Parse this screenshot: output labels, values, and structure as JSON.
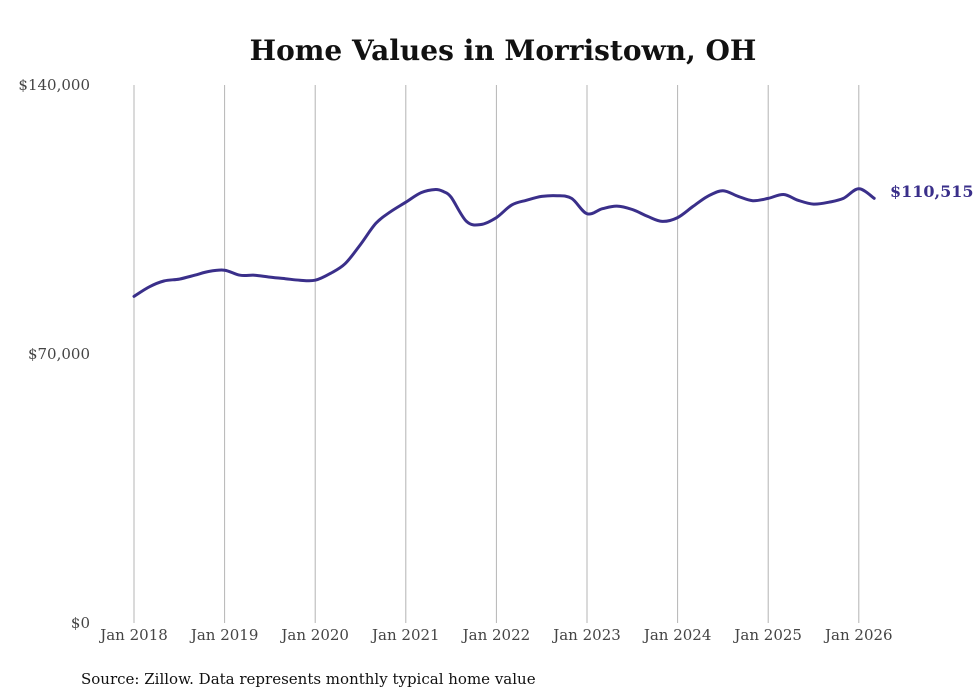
{
  "chart_data": {
    "type": "line",
    "title": "Home Values in Morristown, OH",
    "xlabel": "",
    "ylabel": "",
    "ylim": [
      0,
      140000
    ],
    "y_ticks": [
      {
        "value": 0,
        "label": "$0"
      },
      {
        "value": 70000,
        "label": "$70,000"
      },
      {
        "value": 140000,
        "label": "$140,000"
      }
    ],
    "x_ticks": [
      {
        "value": 2018.0,
        "label": "Jan 2018"
      },
      {
        "value": 2019.0,
        "label": "Jan 2019"
      },
      {
        "value": 2020.0,
        "label": "Jan 2020"
      },
      {
        "value": 2021.0,
        "label": "Jan 2021"
      },
      {
        "value": 2022.0,
        "label": "Jan 2022"
      },
      {
        "value": 2023.0,
        "label": "Jan 2023"
      },
      {
        "value": 2024.0,
        "label": "Jan 2024"
      },
      {
        "value": 2025.0,
        "label": "Jan 2025"
      },
      {
        "value": 2026.0,
        "label": "Jan 2026"
      }
    ],
    "xlim": [
      2017.85,
      2026.55
    ],
    "grid": "vertical",
    "series": [
      {
        "name": "Typical home value",
        "color": "#3a2f8a",
        "x": [
          2018.0,
          2018.17,
          2018.33,
          2018.5,
          2018.67,
          2018.83,
          2019.0,
          2019.17,
          2019.33,
          2019.5,
          2019.67,
          2019.83,
          2020.0,
          2020.17,
          2020.33,
          2020.5,
          2020.67,
          2020.83,
          2021.0,
          2021.17,
          2021.33,
          2021.42,
          2021.5,
          2021.67,
          2021.83,
          2022.0,
          2022.17,
          2022.33,
          2022.5,
          2022.67,
          2022.83,
          2023.0,
          2023.17,
          2023.33,
          2023.5,
          2023.67,
          2023.83,
          2024.0,
          2024.17,
          2024.33,
          2024.5,
          2024.67,
          2024.83,
          2025.0,
          2025.17,
          2025.33,
          2025.5,
          2025.67,
          2025.83,
          2026.0,
          2026.17
        ],
        "values": [
          85000,
          87500,
          89000,
          89500,
          90500,
          91500,
          91800,
          90500,
          90500,
          90000,
          89600,
          89200,
          89200,
          91000,
          93500,
          98500,
          104000,
          107000,
          109500,
          112000,
          112800,
          112200,
          110800,
          104500,
          103700,
          105500,
          108800,
          110000,
          111000,
          111200,
          110500,
          106500,
          107800,
          108500,
          107600,
          105800,
          104500,
          105500,
          108400,
          111000,
          112500,
          111000,
          109900,
          110500,
          111500,
          110000,
          109000,
          109500,
          110500,
          113000,
          110515
        ]
      }
    ],
    "end_label": "$110,515",
    "source": "Source: Zillow. Data represents monthly typical home value"
  }
}
